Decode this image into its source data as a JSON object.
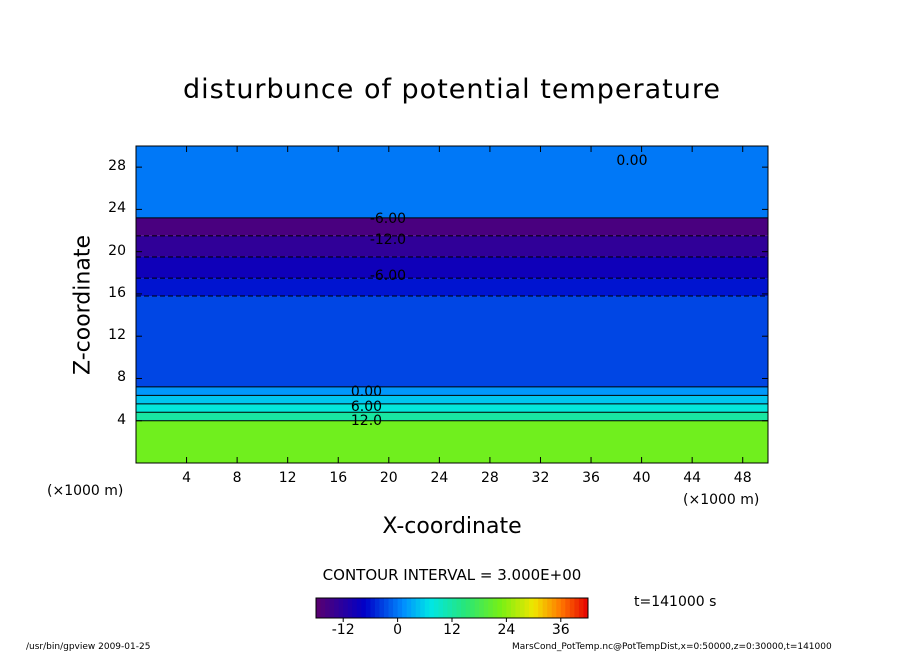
{
  "chart_data": {
    "type": "heatmap",
    "title": "disturbunce of potential temperature",
    "xlabel": "X-coordinate",
    "ylabel": "Z-coordinate",
    "x_unit": "(×1000 m)",
    "y_unit": "(×1000 m)",
    "xlim": [
      0,
      50
    ],
    "ylim": [
      0,
      30
    ],
    "x_ticks": [
      "4",
      "8",
      "12",
      "16",
      "20",
      "24",
      "28",
      "32",
      "36",
      "40",
      "44",
      "48"
    ],
    "y_ticks": [
      "4",
      "8",
      "12",
      "16",
      "20",
      "24",
      "28"
    ],
    "bands": [
      {
        "z_from": 0,
        "z_to": 4.0,
        "value": 22
      },
      {
        "z_from": 4.0,
        "z_to": 4.8,
        "value": 12
      },
      {
        "z_from": 4.8,
        "z_to": 5.6,
        "value": 8
      },
      {
        "z_from": 5.6,
        "z_to": 6.4,
        "value": 5
      },
      {
        "z_from": 6.4,
        "z_to": 7.2,
        "value": 2
      },
      {
        "z_from": 7.2,
        "z_to": 15.8,
        "value": -3
      },
      {
        "z_from": 15.8,
        "z_to": 17.5,
        "value": -6
      },
      {
        "z_from": 17.5,
        "z_to": 19.5,
        "value": -9
      },
      {
        "z_from": 19.5,
        "z_to": 21.5,
        "value": -13
      },
      {
        "z_from": 21.5,
        "z_to": 23.2,
        "value": -16
      },
      {
        "z_from": 23.2,
        "z_to": 30,
        "value": 0
      }
    ],
    "contour_labels": [
      {
        "text": "-6.00",
        "x": 18.5,
        "z": 23.0
      },
      {
        "text": "-12.0",
        "x": 18.5,
        "z": 21.0
      },
      {
        "text": "-6.00",
        "x": 18.5,
        "z": 17.6
      },
      {
        "text": "0.00",
        "x": 17.0,
        "z": 6.6
      },
      {
        "text": "6.00",
        "x": 17.0,
        "z": 5.2
      },
      {
        "text": "12.0",
        "x": 17.0,
        "z": 3.9
      },
      {
        "text": "0.00",
        "x": 38.0,
        "z": 28.5
      }
    ],
    "contour_interval": "CONTOUR INTERVAL = 3.000E+00",
    "colorbar": {
      "min": -18,
      "max": 42,
      "ticks": [
        "-12",
        "0",
        "12",
        "24",
        "36"
      ]
    }
  },
  "annotations": {
    "time": "t=141000 s",
    "footer_left": "/usr/bin/gpview   2009-01-25",
    "footer_right": "MarsCond_PotTemp.nc@PotTempDist,x=0:50000,z=0:30000,t=141000"
  }
}
